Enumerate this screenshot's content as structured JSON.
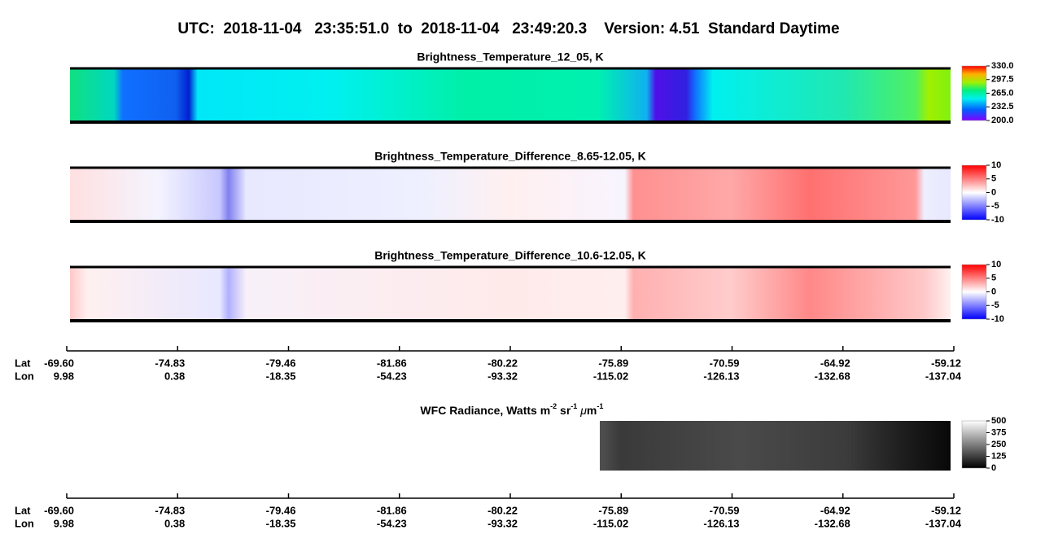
{
  "title": "UTC:  2018-11-04   23:35:51.0  to  2018-11-04   23:49:20.3    Version: 4.51  Standard Daytime",
  "panels": [
    {
      "title": "Brightness_Temperature_12_05, K",
      "colorbar": [
        "330.0",
        "297.5",
        "265.0",
        "232.5",
        "200.0"
      ]
    },
    {
      "title": "Brightness_Temperature_Difference_8.65-12.05, K",
      "colorbar": [
        "10",
        "5",
        "0",
        "-5",
        "-10"
      ]
    },
    {
      "title": "Brightness_Temperature_Difference_10.6-12.05, K",
      "colorbar": [
        "10",
        "5",
        "0",
        "-5",
        "-10"
      ]
    }
  ],
  "wfc": {
    "title_parts": [
      "WFC Radiance, Watts m",
      "-2",
      " sr",
      "-1",
      " ",
      "μ",
      "m",
      "-1"
    ],
    "colorbar": [
      "500",
      "375",
      "250",
      "125",
      "0"
    ]
  },
  "axes": [
    {
      "row_labels": [
        "Lat",
        "Lon"
      ],
      "lat": [
        "-69.60",
        "-74.83",
        "-79.46",
        "-81.86",
        "-80.22",
        "-75.89",
        "-70.59",
        "-64.92",
        "-59.12"
      ],
      "lon": [
        "9.98",
        "0.38",
        "-18.35",
        "-54.23",
        "-93.32",
        "-115.02",
        "-126.13",
        "-132.68",
        "-137.04"
      ]
    },
    {
      "row_labels": [
        "Lat",
        "Lon"
      ],
      "lat": [
        "-69.60",
        "-74.83",
        "-79.46",
        "-81.86",
        "-80.22",
        "-75.89",
        "-70.59",
        "-64.92",
        "-59.12"
      ],
      "lon": [
        "9.98",
        "0.38",
        "-18.35",
        "-54.23",
        "-93.32",
        "-115.02",
        "-126.13",
        "-132.68",
        "-137.04"
      ]
    }
  ]
}
